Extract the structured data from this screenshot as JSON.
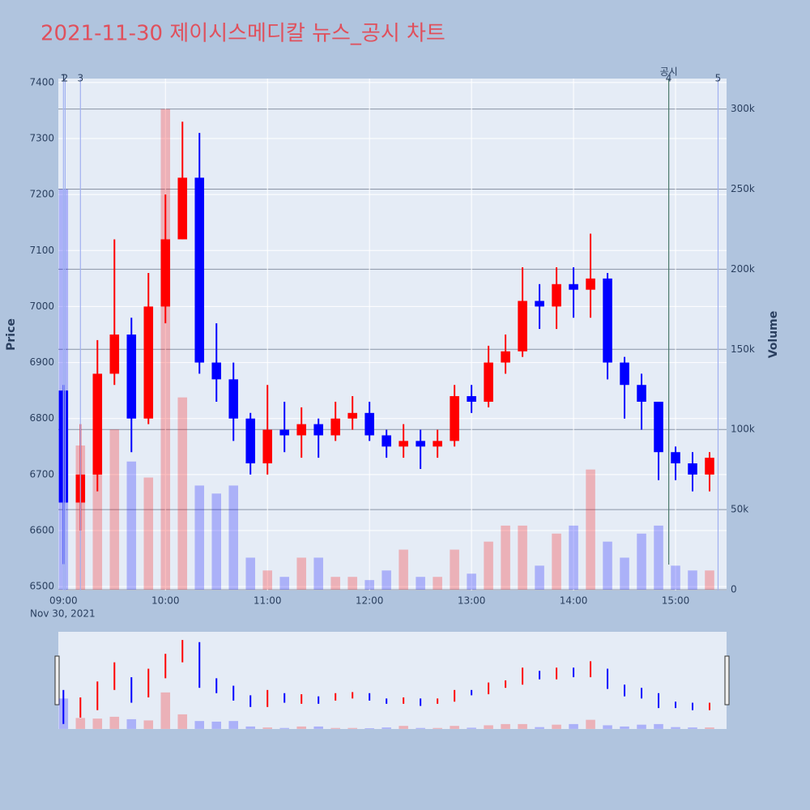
{
  "chart_data": {
    "type": "candlestick",
    "title": "2021-11-30 제이시스메디칼 뉴스_공시 차트",
    "x_date_label": "Nov 30, 2021",
    "y_title": "Price",
    "y2_title": "Volume",
    "x": [
      "09:00",
      "09:10",
      "09:20",
      "09:30",
      "09:40",
      "09:50",
      "10:00",
      "10:10",
      "10:20",
      "10:30",
      "10:40",
      "10:50",
      "11:00",
      "11:10",
      "11:20",
      "11:30",
      "11:40",
      "11:50",
      "12:00",
      "12:10",
      "12:20",
      "12:30",
      "12:40",
      "12:50",
      "13:00",
      "13:10",
      "13:20",
      "13:30",
      "13:40",
      "13:50",
      "14:00",
      "14:10",
      "14:20",
      "14:30",
      "14:40",
      "14:50",
      "15:00",
      "15:10",
      "15:20"
    ],
    "open": [
      6850,
      6650,
      6700,
      6880,
      6950,
      6800,
      7000,
      7120,
      7230,
      6900,
      6870,
      6800,
      6720,
      6780,
      6770,
      6790,
      6770,
      6800,
      6810,
      6770,
      6750,
      6760,
      6750,
      6760,
      6840,
      6830,
      6900,
      6920,
      7010,
      7000,
      7040,
      7030,
      7050,
      6900,
      6860,
      6830,
      6740,
      6720,
      6700
    ],
    "high": [
      6860,
      6790,
      6940,
      7120,
      6980,
      7060,
      7200,
      7330,
      7310,
      6970,
      6900,
      6810,
      6860,
      6830,
      6820,
      6800,
      6830,
      6840,
      6830,
      6780,
      6790,
      6780,
      6780,
      6860,
      6860,
      6930,
      6950,
      7070,
      7040,
      7070,
      7070,
      7130,
      7060,
      6910,
      6880,
      6830,
      6750,
      6740,
      6740
    ],
    "low": [
      6540,
      6600,
      6670,
      6860,
      6740,
      6790,
      6970,
      7120,
      6880,
      6830,
      6760,
      6700,
      6700,
      6740,
      6730,
      6730,
      6760,
      6780,
      6760,
      6730,
      6730,
      6710,
      6730,
      6750,
      6810,
      6820,
      6880,
      6910,
      6960,
      6960,
      6980,
      6980,
      6870,
      6800,
      6780,
      6690,
      6690,
      6670,
      6670
    ],
    "close": [
      6650,
      6700,
      6880,
      6950,
      6800,
      7000,
      7120,
      7230,
      6900,
      6870,
      6800,
      6720,
      6780,
      6770,
      6790,
      6770,
      6800,
      6810,
      6770,
      6750,
      6760,
      6750,
      6760,
      6840,
      6830,
      6900,
      6920,
      7010,
      7000,
      7040,
      7030,
      7050,
      6900,
      6860,
      6830,
      6740,
      6720,
      6700,
      6730
    ],
    "volume": {
      "name": "Volume",
      "axis": "y2",
      "values": [
        250000,
        90000,
        85000,
        100000,
        80000,
        70000,
        300000,
        120000,
        65000,
        60000,
        65000,
        20000,
        12000,
        8000,
        20000,
        20000,
        8000,
        8000,
        6000,
        12000,
        25000,
        8000,
        8000,
        25000,
        10000,
        30000,
        40000,
        40000,
        15000,
        35000,
        40000,
        75000,
        30000,
        20000,
        35000,
        40000,
        15000,
        12000,
        12000
      ]
    },
    "increasing_color": "#ff0000",
    "decreasing_color": "#0000ff",
    "xlim": [
      "08:57",
      "15:30"
    ],
    "xticks": [
      "09:00",
      "10:00",
      "11:00",
      "12:00",
      "13:00",
      "14:00",
      "15:00"
    ],
    "ylim": [
      6493,
      7407
    ],
    "yticks": [
      6500,
      6600,
      6700,
      6800,
      6900,
      7000,
      7100,
      7200,
      7300,
      7400
    ],
    "y2lim": [
      -500,
      319000
    ],
    "y2ticks": [
      0,
      {
        "value": 50000,
        "label": "50k"
      },
      {
        "value": 100000,
        "label": "100k"
      },
      {
        "value": 150000,
        "label": "150k"
      },
      {
        "value": 200000,
        "label": "200k"
      },
      {
        "value": 250000,
        "label": "250k"
      },
      {
        "value": 300000,
        "label": "300k"
      }
    ],
    "events": [
      {
        "label": "1",
        "x": "09:00"
      },
      {
        "label": "2",
        "x": "09:01"
      },
      {
        "label": "3",
        "x": "09:10"
      },
      {
        "label": "4",
        "x": "14:56",
        "annotation": "공시"
      },
      {
        "label": "5",
        "x": "15:25"
      }
    ],
    "grid": true
  }
}
